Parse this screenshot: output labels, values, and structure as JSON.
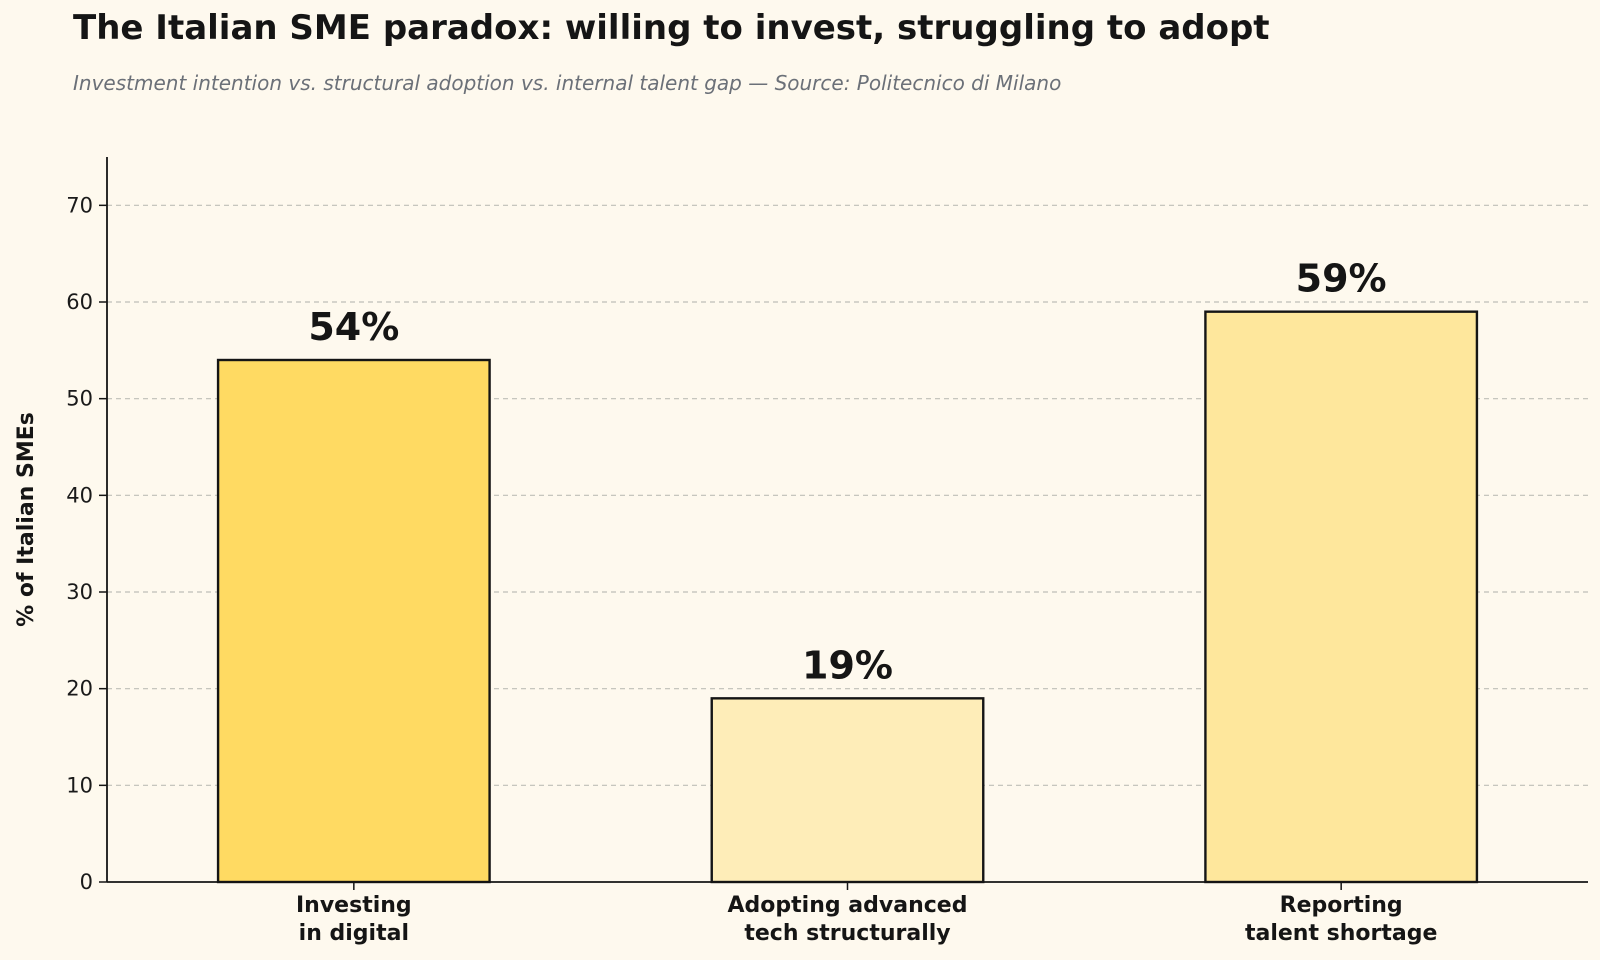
{
  "chart_data": {
    "type": "bar",
    "title": "The Italian SME paradox: willing to invest, struggling to adopt",
    "subtitle": "Investment intention vs. structural adoption vs. internal talent gap — Source: Politecnico di Milano",
    "categories": [
      [
        "Investing",
        "in digital"
      ],
      [
        "Adopting advanced",
        "tech structurally"
      ],
      [
        "Reporting",
        "talent shortage"
      ]
    ],
    "values": [
      54,
      19,
      59
    ],
    "value_labels": [
      "54%",
      "19%",
      "59%"
    ],
    "bar_colors": [
      "#FFDA62",
      "#FEEDB8",
      "#FEE79C"
    ],
    "bar_edge_color": "#151515",
    "xlabel": "",
    "ylabel": "% of Italian SMEs",
    "ylim": [
      0,
      75
    ],
    "yticks": [
      0,
      10,
      20,
      30,
      40,
      50,
      60,
      70
    ],
    "grid": "y-dashed",
    "legend": "none",
    "background": "#FEF9EE",
    "grid_color": "#BFBFB8"
  }
}
